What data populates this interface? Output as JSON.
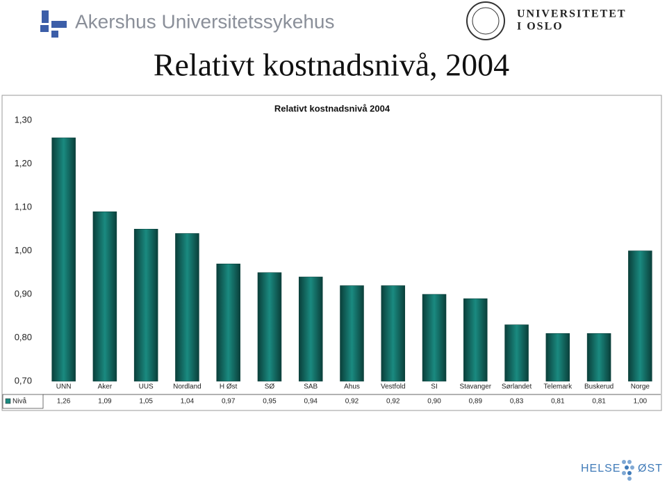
{
  "header": {
    "hospital": "Akershus Universitetssykehus",
    "university_line1": "UNIVERSITETET",
    "university_line2": "I OSLO",
    "slide_title": "Relativt kostnadsnivå, 2004"
  },
  "footer": {
    "brand_left": "HELSE",
    "brand_right": "ØST"
  },
  "chart_data": {
    "type": "bar",
    "title": "Relativt kostnadsnivå 2004",
    "categories": [
      "UNN",
      "Aker",
      "UUS",
      "Nordland",
      "H Øst",
      "SØ",
      "SAB",
      "Ahus",
      "Vestfold",
      "SI",
      "Stavanger",
      "Sørlandet",
      "Telemark",
      "Buskerud",
      "Norge"
    ],
    "series": [
      {
        "name": "Nivå",
        "color": "#1a8a80",
        "values": [
          1.26,
          1.09,
          1.05,
          1.04,
          0.97,
          0.95,
          0.94,
          0.92,
          0.92,
          0.9,
          0.89,
          0.83,
          0.81,
          0.81,
          1.0
        ],
        "value_labels": [
          "1,26",
          "1,09",
          "1,05",
          "1,04",
          "0,97",
          "0,95",
          "0,94",
          "0,92",
          "0,92",
          "0,90",
          "0,89",
          "0,83",
          "0,81",
          "0,81",
          "1,00"
        ]
      }
    ],
    "ylim": [
      0.7,
      1.3
    ],
    "yticks": [
      {
        "value": 0.7,
        "label": "0,70"
      },
      {
        "value": 0.8,
        "label": "0,80"
      },
      {
        "value": 0.9,
        "label": "0,90"
      },
      {
        "value": 1.0,
        "label": "1,00"
      },
      {
        "value": 1.1,
        "label": "1,10"
      },
      {
        "value": 1.2,
        "label": "1,20"
      },
      {
        "value": 1.3,
        "label": "1,30"
      }
    ],
    "grid": false
  }
}
